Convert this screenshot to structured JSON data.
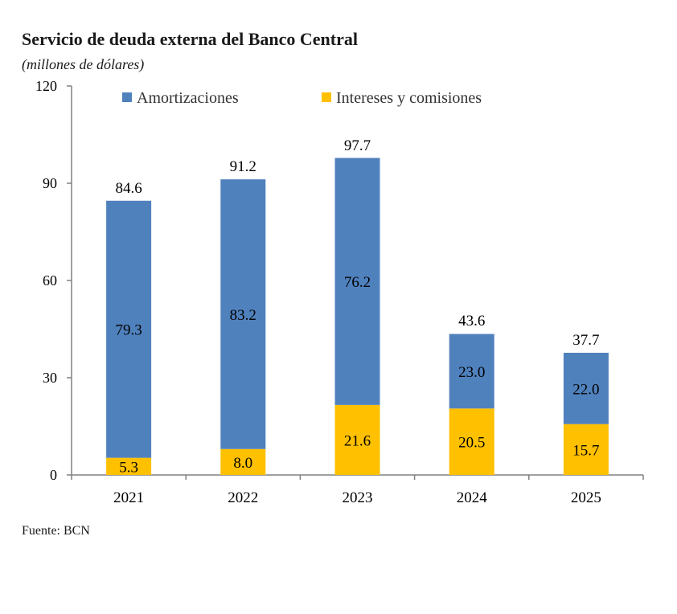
{
  "chart_data": {
    "type": "bar",
    "stacked": true,
    "title": "Servicio de deuda externa del Banco Central",
    "subtitle": "(millones de dólares)",
    "source": "Fuente: BCN",
    "categories": [
      "2021",
      "2022",
      "2023",
      "2024",
      "2025"
    ],
    "series": [
      {
        "name": "Intereses y comisiones",
        "color": "#FFC000",
        "values": [
          5.3,
          8.0,
          21.6,
          20.5,
          15.7
        ]
      },
      {
        "name": "Amortizaciones",
        "color": "#4F81BD",
        "values": [
          79.3,
          83.2,
          76.2,
          23.0,
          22.0
        ]
      }
    ],
    "totals": [
      84.6,
      91.2,
      97.7,
      43.6,
      37.7
    ],
    "ylim": [
      0,
      120
    ],
    "yticks": [
      0,
      30,
      60,
      90,
      120
    ],
    "legend_order": [
      "Amortizaciones",
      "Intereses y comisiones"
    ],
    "legend_position": "top",
    "grid": false,
    "xlabel": "",
    "ylabel": ""
  }
}
